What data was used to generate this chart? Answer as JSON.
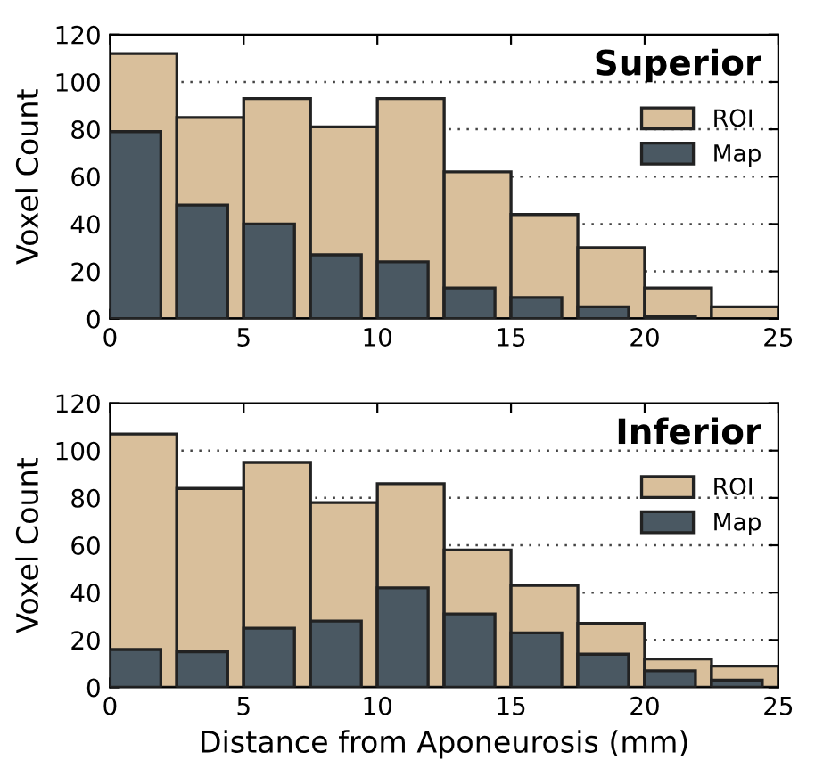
{
  "chart_data": [
    {
      "type": "histogram",
      "title": "Superior",
      "ylabel": "Voxel Count",
      "bins": [
        0,
        2.5,
        5,
        7.5,
        10,
        12.5,
        15,
        17.5,
        20,
        22.5,
        25
      ],
      "series": [
        {
          "name": "ROI",
          "color": "#d9bf9b",
          "values": [
            112,
            85,
            93,
            81,
            93,
            62,
            44,
            30,
            13,
            5
          ]
        },
        {
          "name": "Map",
          "color": "#4a5862",
          "values": [
            79,
            48,
            40,
            27,
            24,
            13,
            9,
            5,
            1,
            null
          ]
        }
      ],
      "xlim": [
        0,
        25
      ],
      "xticks": [
        0,
        5,
        10,
        15,
        20,
        25
      ],
      "ylim": [
        0,
        120
      ],
      "yticks": [
        0,
        20,
        40,
        60,
        80,
        100,
        120
      ],
      "grid": "y",
      "legend": "top right"
    },
    {
      "type": "histogram",
      "title": "Inferior",
      "ylabel": "Voxel Count",
      "xlabel": "Distance from Aponeurosis (mm)",
      "bins": [
        0,
        2.5,
        5,
        7.5,
        10,
        12.5,
        15,
        17.5,
        20,
        22.5,
        25
      ],
      "series": [
        {
          "name": "ROI",
          "color": "#d9bf9b",
          "values": [
            107,
            84,
            95,
            78,
            86,
            58,
            43,
            27,
            12,
            9
          ]
        },
        {
          "name": "Map",
          "color": "#4a5862",
          "values": [
            16,
            15,
            25,
            28,
            42,
            31,
            23,
            14,
            7,
            3
          ]
        }
      ],
      "xlim": [
        0,
        25
      ],
      "xticks": [
        0,
        5,
        10,
        15,
        20,
        25
      ],
      "ylim": [
        0,
        120
      ],
      "yticks": [
        0,
        20,
        40,
        60,
        80,
        100,
        120
      ],
      "grid": "y",
      "legend": "top right"
    }
  ]
}
